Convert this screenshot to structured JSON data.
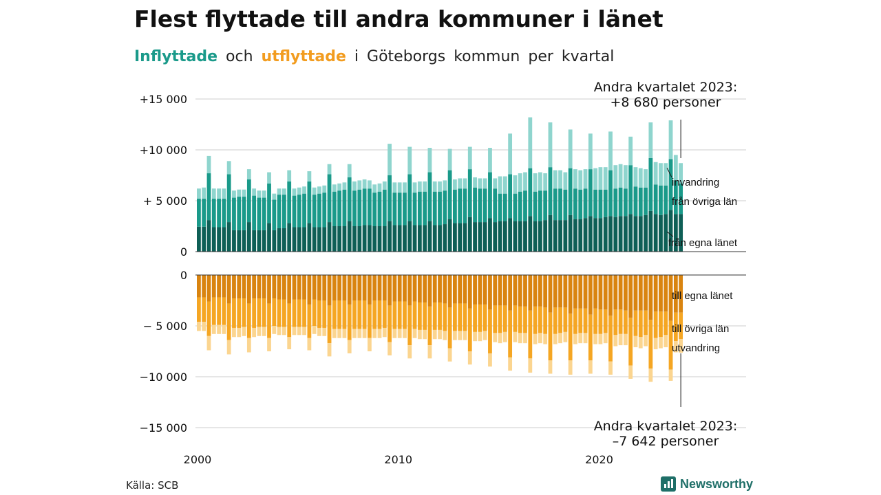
{
  "title": "Flest flyttade till andra kommuner i länet",
  "subtitle": {
    "in_word": "Inflyttade",
    "and_word": "och",
    "out_word": "utflyttade",
    "rest": "i Göteborgs kommun per kvartal"
  },
  "source": "Källa: SCB",
  "brand": "Newsworthy",
  "colors": {
    "in_own": "#0e5f56",
    "in_other": "#1a9a8a",
    "in_intl": "#8fd5ce",
    "out_own": "#d98410",
    "out_other": "#f5a623",
    "out_intl": "#fbd590",
    "grid": "#dddddd",
    "axis": "#333333",
    "brand": "#1f6f68"
  },
  "chart_data": {
    "type": "bar",
    "stacked": true,
    "x_start": "2000 Q1",
    "x_end": "2023 Q2",
    "x_ticks": [
      "2000",
      "2010",
      "2020"
    ],
    "inflow": {
      "y_ticks": [
        "+15 000",
        "+10 000",
        "+ 5 000",
        "0"
      ],
      "ylim": [
        0,
        15000
      ],
      "series_labels": [
        "invandring",
        "från övriga län",
        "från egna länet"
      ]
    },
    "outflow": {
      "y_ticks": [
        "0",
        "− 5 000",
        "−10 000",
        "−15 000"
      ],
      "ylim": [
        -15000,
        0
      ],
      "series_labels": [
        "till egna länet",
        "till övriga län",
        "utvandring"
      ]
    },
    "annotation_top": {
      "line1": "Andra kvartalet 2023:",
      "line2": "+8 680 personer",
      "value": 8680
    },
    "annotation_bottom": {
      "line1": "Andra kvartalet 2023:",
      "line2": "–7 642 personer",
      "value": -7642
    },
    "series": [
      {
        "name": "från egna länet",
        "values": [
          2450,
          2450,
          3100,
          2400,
          2400,
          2400,
          2900,
          2100,
          2100,
          2100,
          2900,
          2100,
          2100,
          2100,
          2800,
          2100,
          2300,
          2300,
          2800,
          2400,
          2400,
          2400,
          2800,
          2400,
          2400,
          2400,
          2900,
          2500,
          2500,
          2500,
          3000,
          2500,
          2500,
          2600,
          2600,
          2500,
          2500,
          2500,
          3000,
          2600,
          2600,
          2600,
          3000,
          2600,
          2600,
          2600,
          3000,
          2600,
          2600,
          2700,
          3200,
          2800,
          2800,
          2800,
          3400,
          2900,
          2900,
          2900,
          3300,
          2900,
          3000,
          3000,
          3300,
          3000,
          3000,
          3000,
          3500,
          3000,
          3000,
          3100,
          3600,
          3100,
          3100,
          3100,
          3600,
          3200,
          3200,
          3300,
          3500,
          3300,
          3300,
          3400,
          3500,
          3400,
          3500,
          3500,
          3700,
          3500,
          3500,
          3600,
          4000,
          3700,
          3600,
          3700,
          4100,
          3700,
          3700
        ]
      },
      {
        "name": "från övriga län",
        "values": [
          2750,
          2750,
          4600,
          2800,
          2800,
          2800,
          4700,
          3200,
          3300,
          3300,
          4200,
          3400,
          3200,
          3200,
          3900,
          3000,
          3300,
          3300,
          4100,
          3100,
          3200,
          3300,
          4100,
          3200,
          3300,
          3400,
          4700,
          3400,
          3500,
          3600,
          4300,
          3500,
          3600,
          3600,
          3600,
          3300,
          3400,
          3600,
          4500,
          3200,
          3200,
          3200,
          4600,
          3200,
          3300,
          3300,
          4800,
          3300,
          3300,
          3300,
          4800,
          3300,
          3400,
          3400,
          4700,
          3400,
          3300,
          3300,
          4500,
          3300,
          2700,
          2700,
          4300,
          2700,
          2900,
          3000,
          4700,
          2900,
          3000,
          2900,
          4700,
          3100,
          3100,
          3000,
          4600,
          3000,
          2900,
          2900,
          4600,
          2800,
          2800,
          2700,
          4500,
          2800,
          2800,
          2700,
          4800,
          2900,
          2800,
          2700,
          5200,
          2900,
          2900,
          2800,
          5000,
          3300,
          3000
        ]
      },
      {
        "name": "invandring",
        "values": [
          1000,
          1100,
          1700,
          1000,
          1000,
          1000,
          1300,
          700,
          700,
          700,
          1000,
          700,
          700,
          700,
          1100,
          600,
          600,
          600,
          1100,
          700,
          700,
          700,
          1000,
          700,
          700,
          700,
          1000,
          700,
          700,
          700,
          1300,
          900,
          900,
          900,
          800,
          800,
          800,
          800,
          3100,
          1000,
          1000,
          1000,
          2700,
          1000,
          1000,
          1000,
          2400,
          1000,
          1000,
          1000,
          2100,
          1000,
          1000,
          1000,
          2200,
          1000,
          1000,
          1000,
          2400,
          1000,
          1700,
          1700,
          4000,
          1800,
          1800,
          1800,
          5000,
          1800,
          1800,
          1700,
          4400,
          1800,
          1800,
          1700,
          3800,
          1900,
          1900,
          1900,
          3500,
          2100,
          2200,
          2200,
          3800,
          2300,
          2300,
          2300,
          2800,
          1900,
          1900,
          1800,
          3500,
          2200,
          2200,
          2200,
          3800,
          2500,
          2000
        ]
      },
      {
        "name": "till egna länet",
        "values": [
          2200,
          2200,
          2600,
          2200,
          2200,
          2200,
          2800,
          2300,
          2300,
          2300,
          2800,
          2300,
          2300,
          2300,
          2800,
          2300,
          2400,
          2400,
          2800,
          2400,
          2400,
          2400,
          2900,
          2400,
          2500,
          2500,
          3000,
          2500,
          2500,
          2500,
          2900,
          2500,
          2500,
          2500,
          2900,
          2500,
          2500,
          2500,
          3000,
          2600,
          2600,
          2600,
          3000,
          2600,
          2700,
          2700,
          3100,
          2700,
          2700,
          2800,
          3200,
          2800,
          2800,
          2800,
          3300,
          2900,
          2900,
          2900,
          3400,
          3000,
          3000,
          3000,
          3500,
          3000,
          3100,
          3100,
          3500,
          3100,
          3100,
          3200,
          3700,
          3200,
          3200,
          3200,
          3800,
          3300,
          3300,
          3300,
          3900,
          3300,
          3400,
          3400,
          4000,
          3400,
          3400,
          3500,
          4200,
          3500,
          3500,
          3500,
          4400,
          3600,
          3600,
          3600,
          4500,
          3700,
          3700
        ]
      },
      {
        "name": "till övriga län",
        "values": [
          2400,
          2400,
          3400,
          2700,
          2700,
          2700,
          3600,
          2900,
          2900,
          2800,
          3400,
          2900,
          2800,
          2800,
          3400,
          2700,
          2700,
          2700,
          3300,
          2700,
          2700,
          2700,
          3300,
          2600,
          2700,
          2700,
          3700,
          2800,
          2800,
          2800,
          3500,
          2800,
          2800,
          2800,
          3300,
          2800,
          2800,
          2700,
          3600,
          2700,
          2700,
          2700,
          3900,
          2700,
          2700,
          2700,
          3800,
          2700,
          2700,
          2700,
          4000,
          2700,
          2700,
          2700,
          4200,
          2700,
          2700,
          2600,
          4300,
          2700,
          2700,
          2600,
          4600,
          2600,
          2600,
          2600,
          4700,
          2700,
          2600,
          2600,
          4700,
          2600,
          2500,
          2400,
          4600,
          2500,
          2400,
          2400,
          4500,
          2500,
          2400,
          2300,
          4500,
          2500,
          2400,
          2300,
          4700,
          2500,
          2600,
          2400,
          4800,
          2600,
          2500,
          2300,
          4800,
          2800,
          2600
        ]
      },
      {
        "name": "utvandring",
        "values": [
          900,
          900,
          1400,
          900,
          900,
          900,
          1400,
          900,
          900,
          900,
          1400,
          900,
          900,
          900,
          1300,
          800,
          800,
          800,
          1200,
          800,
          800,
          800,
          1200,
          800,
          800,
          800,
          1300,
          900,
          900,
          900,
          1300,
          900,
          900,
          900,
          1300,
          900,
          900,
          900,
          1300,
          900,
          900,
          900,
          1300,
          900,
          900,
          900,
          1300,
          900,
          900,
          900,
          1300,
          900,
          900,
          900,
          1300,
          900,
          900,
          900,
          1300,
          900,
          1000,
          1000,
          1300,
          1000,
          1000,
          1000,
          1400,
          1000,
          1000,
          1000,
          1300,
          1000,
          1000,
          1000,
          1400,
          1000,
          1000,
          1000,
          1300,
          1000,
          1000,
          1000,
          1300,
          1100,
          1100,
          1100,
          1300,
          1100,
          1100,
          1100,
          1300,
          1100,
          1100,
          1200,
          1100,
          1100,
          1342
        ]
      }
    ]
  }
}
